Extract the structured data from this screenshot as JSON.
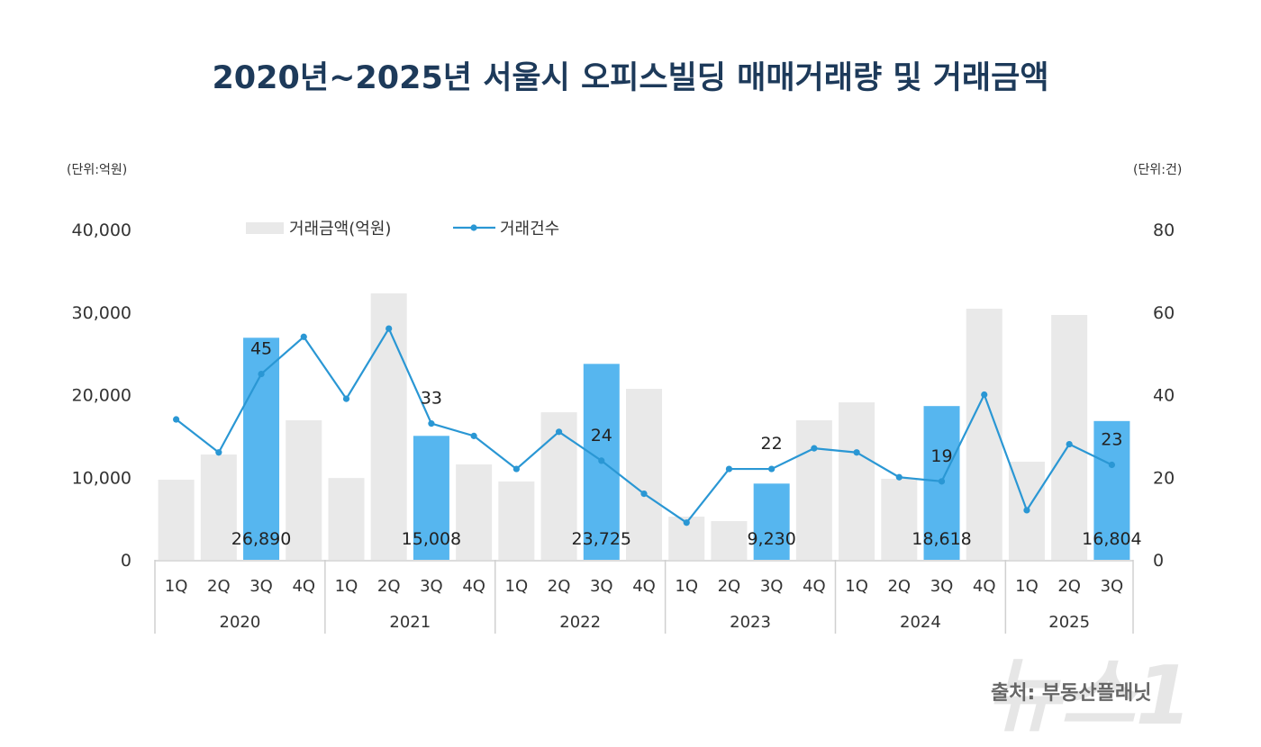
{
  "title": "2020년~2025년 서울시 오피스빌딩 매매거래량 및 거래금액",
  "left_unit": "(단위:억원)",
  "right_unit": "(단위:건)",
  "source": "출처: 부동산플래닛",
  "watermark": "뉴스1",
  "colors": {
    "bar": "#e9e9e9",
    "bar_highlight": "#56b6ef",
    "line": "#2a97d4",
    "title": "#1d3a5a"
  },
  "chart_data": {
    "type": "bar+line",
    "title": "2020년~2025년 서울시 오피스빌딩 매매거래량 및 거래금액",
    "legend": [
      "거래금액(억원)",
      "거래건수"
    ],
    "legend_position": "top",
    "years": [
      "2020",
      "2021",
      "2022",
      "2023",
      "2024",
      "2025"
    ],
    "categories": [
      "1Q",
      "2Q",
      "3Q",
      "4Q",
      "1Q",
      "2Q",
      "3Q",
      "4Q",
      "1Q",
      "2Q",
      "3Q",
      "4Q",
      "1Q",
      "2Q",
      "3Q",
      "4Q",
      "1Q",
      "2Q",
      "3Q",
      "4Q",
      "1Q",
      "2Q",
      "3Q"
    ],
    "year_of_category": [
      "2020",
      "2020",
      "2020",
      "2020",
      "2021",
      "2021",
      "2021",
      "2021",
      "2022",
      "2022",
      "2022",
      "2022",
      "2023",
      "2023",
      "2023",
      "2023",
      "2024",
      "2024",
      "2024",
      "2024",
      "2025",
      "2025",
      "2025"
    ],
    "series": [
      {
        "name": "거래금액(억원)",
        "type": "bar",
        "axis": "left",
        "values": [
          9700,
          12750,
          26890,
          16900,
          9900,
          32260,
          15008,
          11550,
          9480,
          17870,
          23725,
          20700,
          5230,
          4690,
          9230,
          16900,
          19070,
          9810,
          18618,
          30400,
          11880,
          29650,
          16804
        ],
        "highlighted": [
          2,
          6,
          10,
          14,
          18,
          22
        ],
        "labels": [
          "26,890",
          "15,008",
          "23,725",
          "9,230",
          "18,618",
          "16,804"
        ]
      },
      {
        "name": "거래건수",
        "type": "line",
        "axis": "right",
        "values": [
          34,
          26,
          45,
          54,
          39,
          56,
          33,
          30,
          22,
          31,
          24,
          16,
          9,
          22,
          22,
          27,
          26,
          20,
          19,
          40,
          12,
          28,
          23
        ],
        "labels": [
          "45",
          "33",
          "24",
          "22",
          "19",
          "23"
        ]
      }
    ],
    "left_axis": {
      "ylim": [
        0,
        40000
      ],
      "ticks": [
        "0",
        "10,000",
        "20,000",
        "30,000",
        "40,000"
      ]
    },
    "right_axis": {
      "ylim": [
        0,
        80
      ],
      "ticks": [
        "0",
        "20",
        "40",
        "60",
        "80"
      ]
    },
    "grid": false
  }
}
